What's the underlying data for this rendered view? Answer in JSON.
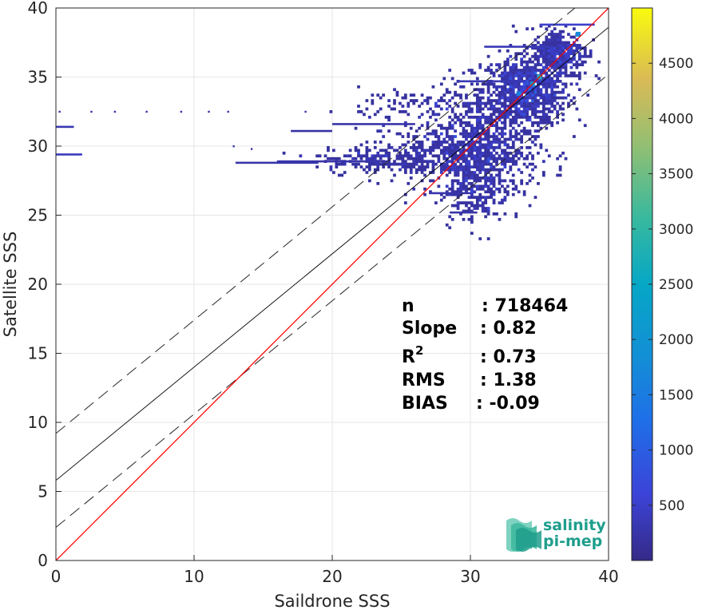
{
  "chart_data": {
    "type": "heatmap",
    "title": "",
    "xlabel": "Saildrone SSS",
    "ylabel": "Satellite SSS",
    "xlim": [
      0,
      40
    ],
    "ylim": [
      0,
      40
    ],
    "xticks": [
      "0",
      "10",
      "20",
      "30",
      "40"
    ],
    "yticks": [
      "0",
      "5",
      "10",
      "15",
      "20",
      "25",
      "30",
      "35",
      "40"
    ],
    "grid": true,
    "colorbar": {
      "range": [
        0,
        5000
      ],
      "ticks": [
        "500",
        "1000",
        "1500",
        "2000",
        "2500",
        "3000",
        "3500",
        "4000",
        "4500"
      ],
      "colormap": "parula"
    },
    "reference_lines": {
      "identity": {
        "slope": 1,
        "intercept": 0,
        "color": "#ff0000"
      },
      "fit": {
        "slope": 0.82,
        "intercept": 5.8,
        "color": "#000000"
      },
      "fit_upper": {
        "slope": 0.82,
        "intercept": 9.2,
        "style": "dashed"
      },
      "fit_lower": {
        "slope": 0.82,
        "intercept": 2.4,
        "style": "dashed"
      }
    },
    "stats": [
      {
        "label": "n",
        "value": ": 718464"
      },
      {
        "label": "Slope",
        "value": ": 0.82"
      },
      {
        "label": "R",
        "sup": "2",
        "value": ": 0.73"
      },
      {
        "label": "RMS",
        "value": ": 1.38"
      },
      {
        "label": "BIAS",
        "value": ": -0.09"
      }
    ],
    "density_blobs": [
      {
        "x": 34,
        "y": 34,
        "sx": 1.6,
        "sy": 1.3,
        "n": 900
      },
      {
        "x": 31,
        "y": 30,
        "sx": 2.0,
        "sy": 2.0,
        "n": 700
      },
      {
        "x": 36.5,
        "y": 36.8,
        "sx": 1.0,
        "sy": 0.9,
        "n": 350
      },
      {
        "x": 28,
        "y": 29.5,
        "sx": 2.6,
        "sy": 1.2,
        "n": 400
      },
      {
        "x": 30.5,
        "y": 27,
        "sx": 1.2,
        "sy": 1.2,
        "n": 200
      },
      {
        "x": 23,
        "y": 29,
        "sx": 2.2,
        "sy": 0.45,
        "n": 160
      },
      {
        "x": 27,
        "y": 33,
        "sx": 2.5,
        "sy": 0.6,
        "n": 110
      }
    ],
    "density_hot": [
      {
        "x": 35,
        "y": 35,
        "v": 0.55
      },
      {
        "x": 34.5,
        "y": 34.5,
        "v": 0.45
      },
      {
        "x": 33.5,
        "y": 33.8,
        "v": 0.3
      },
      {
        "x": 37.8,
        "y": 38.1,
        "v": 0.35
      }
    ],
    "density_streaks": [
      {
        "x0": 0,
        "x1": 1.9,
        "y": 29.4,
        "v": 0.08
      },
      {
        "x0": 0,
        "x1": 1.3,
        "y": 31.4,
        "v": 0.06
      },
      {
        "x0": 13,
        "x1": 19,
        "y": 28.8,
        "v": 0.05
      },
      {
        "x0": 16,
        "x1": 24,
        "y": 28.9,
        "v": 0.05
      },
      {
        "x0": 20,
        "x1": 26,
        "y": 31.6,
        "v": 0.05
      },
      {
        "x0": 17,
        "x1": 20,
        "y": 31.1,
        "v": 0.04
      },
      {
        "x0": 29,
        "x1": 34,
        "y": 34.7,
        "v": 0.07
      },
      {
        "x0": 31,
        "x1": 36,
        "y": 37.2,
        "v": 0.07
      },
      {
        "x0": 35,
        "x1": 39,
        "y": 38.8,
        "v": 0.1
      },
      {
        "x0": 27,
        "x1": 30,
        "y": 26.6,
        "v": 0.05
      },
      {
        "x0": 28.5,
        "x1": 30.5,
        "y": 25.2,
        "v": 0.05
      }
    ],
    "density_dots": [
      [
        0.2,
        32.5
      ],
      [
        2.5,
        32.5
      ],
      [
        4.2,
        32.5
      ],
      [
        6.5,
        32.5
      ],
      [
        9,
        32.5
      ],
      [
        11,
        32.5
      ],
      [
        12.4,
        32.5
      ],
      [
        18,
        32.5
      ],
      [
        12.8,
        30
      ],
      [
        14.1,
        29.8
      ]
    ]
  },
  "logo": {
    "line1": "salinity",
    "line2": "pi-mep"
  }
}
